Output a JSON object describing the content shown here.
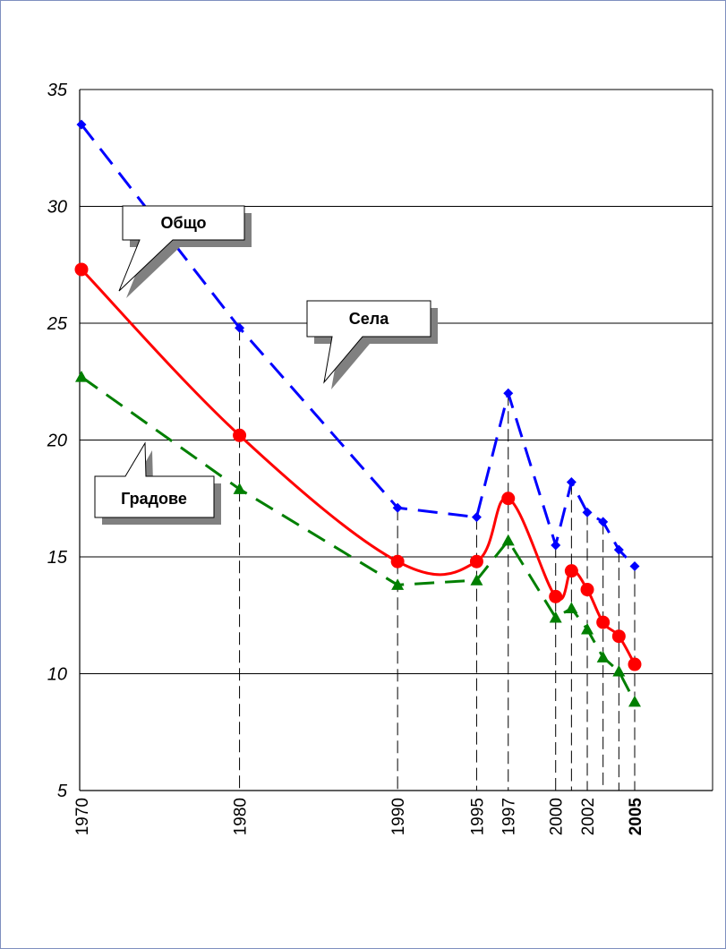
{
  "chart_data": {
    "type": "line",
    "xlabel": "",
    "ylabel": "",
    "ylim": [
      5,
      35
    ],
    "yticks": [
      "35",
      "30",
      "25",
      "20",
      "15",
      "10",
      "5"
    ],
    "xticks": [
      "1970",
      "1980",
      "1990",
      "1995",
      "1997",
      "2000",
      "2002",
      "2005"
    ],
    "grid": "horizontal",
    "series": [
      {
        "name": "Села",
        "color": "#0000ff",
        "style": "dashed",
        "marker": "diamond",
        "x": [
          1970,
          1980,
          1990,
          1995,
          1997,
          2000,
          2001,
          2002,
          2003,
          2004,
          2005
        ],
        "values": [
          33.5,
          24.8,
          17.1,
          16.7,
          22.0,
          15.5,
          18.2,
          16.9,
          16.5,
          15.3,
          14.6
        ]
      },
      {
        "name": "Общо",
        "color": "#ff0000",
        "style": "solid",
        "marker": "circle",
        "x": [
          1970,
          1980,
          1990,
          1995,
          1997,
          2000,
          2001,
          2002,
          2003,
          2004,
          2005
        ],
        "values": [
          27.3,
          20.2,
          14.8,
          14.8,
          17.5,
          13.3,
          14.4,
          13.6,
          12.2,
          11.6,
          10.4
        ]
      },
      {
        "name": "Градове",
        "color": "#007f00",
        "style": "dashed",
        "marker": "triangle",
        "x": [
          1970,
          1980,
          1990,
          1995,
          1997,
          2000,
          2001,
          2002,
          2003,
          2004,
          2005
        ],
        "values": [
          22.7,
          17.9,
          13.8,
          14.0,
          15.7,
          12.4,
          12.8,
          11.9,
          10.7,
          10.1,
          8.8
        ]
      }
    ],
    "annotations": {
      "total": "Общо",
      "villages": "Села",
      "towns": "Градове"
    }
  }
}
